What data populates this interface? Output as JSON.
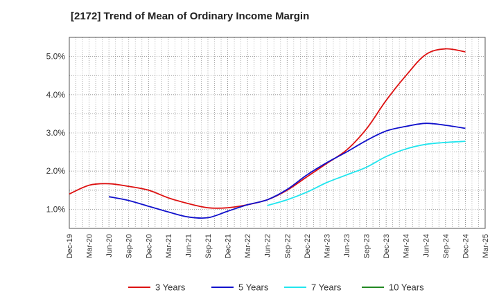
{
  "chart_data": {
    "type": "line",
    "title": "[2172]  Trend of Mean of Ordinary Income Margin",
    "xlabel": "",
    "ylabel": "",
    "x": [
      "Dec-19",
      "Mar-20",
      "Jun-20",
      "Sep-20",
      "Dec-20",
      "Mar-21",
      "Jun-21",
      "Sep-21",
      "Dec-21",
      "Mar-22",
      "Jun-22",
      "Sep-22",
      "Dec-22",
      "Mar-23",
      "Jun-23",
      "Sep-23",
      "Dec-23",
      "Mar-24",
      "Jun-24",
      "Sep-24",
      "Dec-24",
      "Mar-25"
    ],
    "ylim": [
      0.5,
      5.5
    ],
    "yticks": [
      1.0,
      2.0,
      3.0,
      4.0,
      5.0
    ],
    "ytick_labels": [
      "1.0%",
      "2.0%",
      "3.0%",
      "4.0%",
      "5.0%"
    ],
    "grid": true,
    "legend_position": "bottom",
    "series": [
      {
        "name": "3 Years",
        "color": "#dd1111",
        "values": [
          1.4,
          1.63,
          1.67,
          1.6,
          1.5,
          1.3,
          1.15,
          1.04,
          1.04,
          1.12,
          1.25,
          1.5,
          1.85,
          2.2,
          2.55,
          3.1,
          3.85,
          4.5,
          5.05,
          5.2,
          5.12,
          null
        ]
      },
      {
        "name": "5 Years",
        "color": "#1111cc",
        "values": [
          null,
          null,
          1.33,
          1.23,
          1.08,
          0.93,
          0.8,
          0.78,
          0.95,
          1.12,
          1.25,
          1.52,
          1.9,
          2.22,
          2.5,
          2.8,
          3.05,
          3.17,
          3.25,
          3.2,
          3.12,
          null
        ]
      },
      {
        "name": "7 Years",
        "color": "#22e5ee",
        "values": [
          null,
          null,
          null,
          null,
          null,
          null,
          null,
          null,
          null,
          null,
          1.1,
          1.25,
          1.45,
          1.7,
          1.9,
          2.1,
          2.38,
          2.58,
          2.7,
          2.75,
          2.78,
          null
        ]
      },
      {
        "name": "10 Years",
        "color": "#228822",
        "values": [
          null,
          null,
          null,
          null,
          null,
          null,
          null,
          null,
          null,
          null,
          null,
          null,
          null,
          null,
          null,
          null,
          null,
          null,
          null,
          null,
          null,
          null
        ]
      }
    ]
  }
}
